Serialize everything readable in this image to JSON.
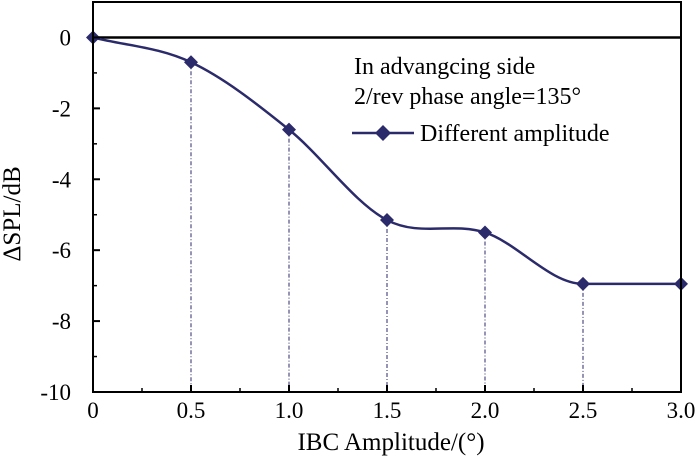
{
  "chart_data": {
    "type": "line",
    "xlabel": "IBC Amplitude/(°)",
    "ylabel": "ΔSPL/dB",
    "x_tick_labels": [
      "0",
      "0.5",
      "1.0",
      "1.5",
      "2.0",
      "2.5",
      "3.0"
    ],
    "x_tick_values": [
      0,
      0.5,
      1.0,
      1.5,
      2.0,
      2.5,
      3.0
    ],
    "y_tick_labels": [
      "0",
      "-2",
      "-4",
      "-6",
      "-8",
      "-10"
    ],
    "y_tick_values": [
      0,
      -2,
      -4,
      -6,
      -8,
      -10
    ],
    "xlim": [
      0,
      3.0
    ],
    "ylim": [
      -10,
      1
    ],
    "reference_line_y": 0,
    "annotations": [
      "In advangcing side",
      "2/rev phase angle=135°"
    ],
    "series": [
      {
        "name": "Different amplitude",
        "color": "#2b2a6b",
        "marker": "diamond",
        "x": [
          0,
          0.5,
          1.0,
          1.5,
          2.0,
          2.5,
          3.0
        ],
        "values": [
          0,
          -0.7,
          -2.6,
          -5.15,
          -5.5,
          -6.95,
          -6.95
        ]
      }
    ]
  }
}
